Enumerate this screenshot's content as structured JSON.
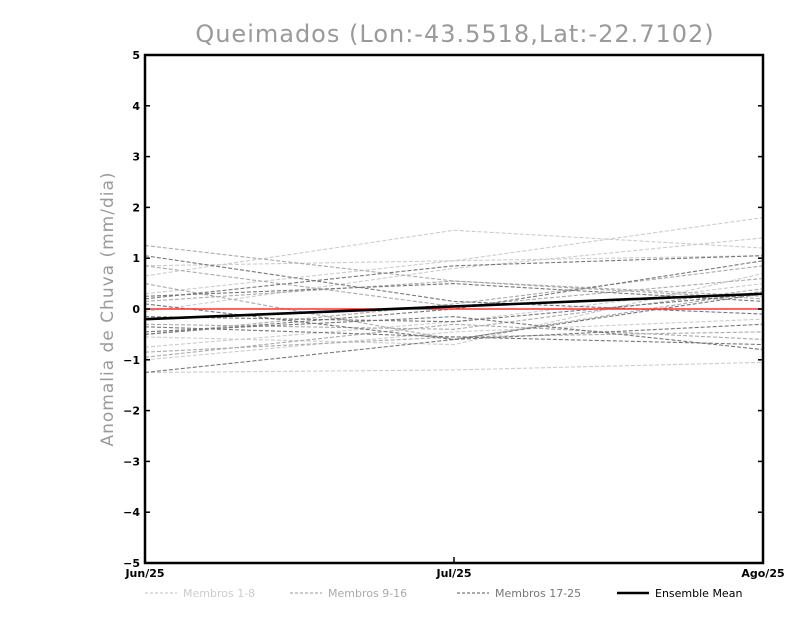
{
  "chart_data": {
    "type": "line",
    "title": "Queimados (Lon:-43.5518,Lat:-22.7102)",
    "xlabel": "",
    "ylabel": "Anomalia de Chuva (mm/dia)",
    "x": [
      "Jun/25",
      "Jul/25",
      "Ago/25"
    ],
    "ylim": [
      -5,
      5
    ],
    "yticks": [
      "5",
      "4",
      "3",
      "2",
      "1",
      "0",
      "−1",
      "−2",
      "−3",
      "−4",
      "−5"
    ],
    "grid": false,
    "zero_line_color": "#ff3030",
    "legend_position": "bottom",
    "groups": [
      {
        "legend": "Membros 1-8",
        "color": "#cccccc",
        "dashed": true,
        "series": [
          {
            "values": [
              0.85,
              0.95,
              1.8
            ]
          },
          {
            "values": [
              0.65,
              1.55,
              1.2
            ]
          },
          {
            "values": [
              -0.05,
              0.8,
              1.4
            ]
          },
          {
            "values": [
              -0.75,
              -0.25,
              0.5
            ]
          },
          {
            "values": [
              -1.0,
              -0.45,
              -0.2
            ]
          },
          {
            "values": [
              -1.25,
              -1.2,
              -1.05
            ]
          },
          {
            "values": [
              0.3,
              0.95,
              1.05
            ]
          },
          {
            "values": [
              -0.55,
              -0.7,
              0.7
            ]
          }
        ]
      },
      {
        "legend": "Membros 9-16",
        "color": "#aaaaaa",
        "dashed": true,
        "series": [
          {
            "values": [
              1.25,
              0.55,
              0.25
            ]
          },
          {
            "values": [
              0.5,
              -0.6,
              0.35
            ]
          },
          {
            "values": [
              -0.5,
              0.1,
              0.85
            ]
          },
          {
            "values": [
              -0.85,
              -0.55,
              -0.45
            ]
          },
          {
            "values": [
              0.15,
              0.55,
              0.2
            ]
          },
          {
            "values": [
              -0.3,
              -0.4,
              0.4
            ]
          },
          {
            "values": [
              -0.95,
              -0.3,
              -0.6
            ]
          },
          {
            "values": [
              0.85,
              0.05,
              0.6
            ]
          }
        ]
      },
      {
        "legend": "Membros 17-25",
        "color": "#777777",
        "dashed": true,
        "series": [
          {
            "values": [
              1.05,
              0.15,
              -0.1
            ]
          },
          {
            "values": [
              0.2,
              0.85,
              1.05
            ]
          },
          {
            "values": [
              -1.25,
              -0.6,
              0.3
            ]
          },
          {
            "values": [
              -0.35,
              -0.55,
              -0.7
            ]
          },
          {
            "values": [
              0.25,
              0.5,
              0.15
            ]
          },
          {
            "values": [
              -0.45,
              -0.15,
              -0.8
            ]
          },
          {
            "values": [
              -0.15,
              -0.25,
              0.3
            ]
          },
          {
            "values": [
              0.1,
              -0.6,
              -0.3
            ]
          },
          {
            "values": [
              -0.5,
              0.0,
              0.95
            ]
          }
        ]
      }
    ],
    "mean": {
      "legend": "Ensemble Mean",
      "color": "#000000",
      "values": [
        -0.2,
        0.05,
        0.3
      ]
    }
  }
}
